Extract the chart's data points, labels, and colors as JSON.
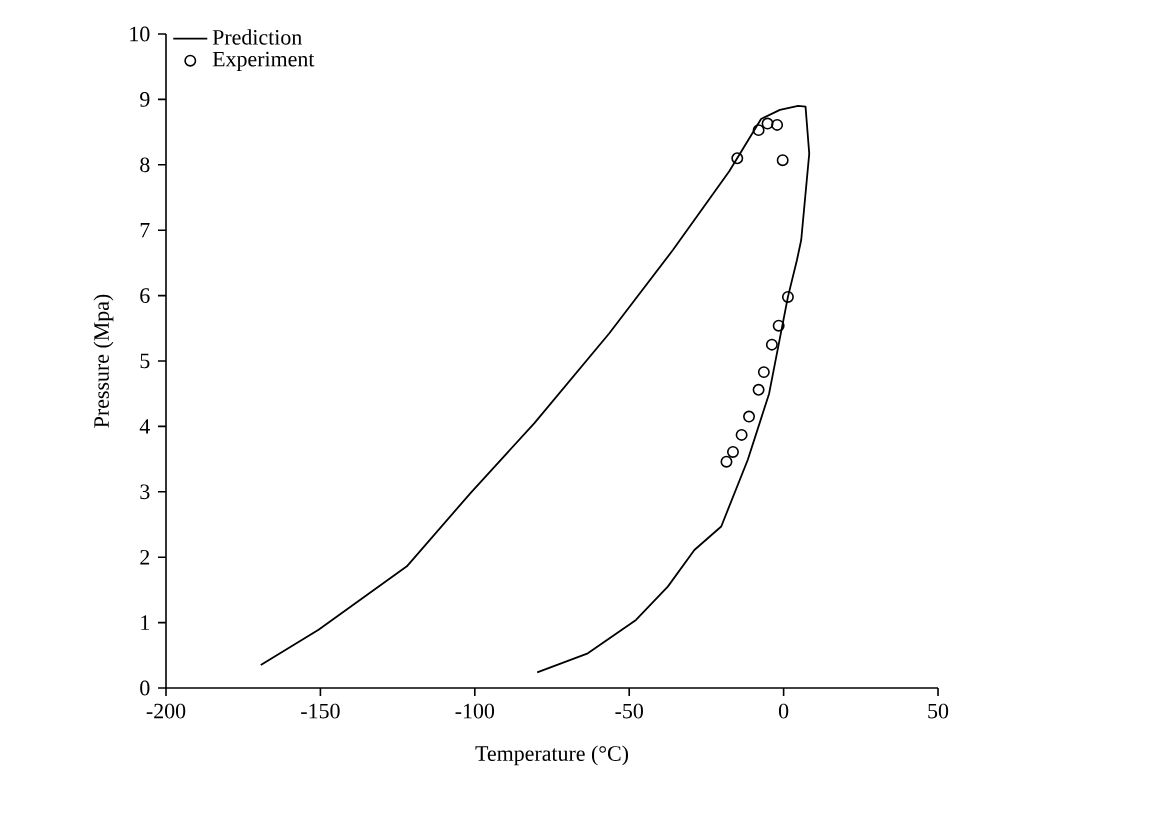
{
  "chart_data": {
    "type": "line",
    "xlabel": "Temperature (°C)",
    "ylabel": "Pressure (Mpa)",
    "xlim": [
      -200,
      50
    ],
    "xticks": [
      -200,
      -150,
      -100,
      -50,
      0,
      50
    ],
    "ylim": [
      0,
      10
    ],
    "yticks": [
      0,
      1,
      2,
      3,
      4,
      5,
      6,
      7,
      8,
      9,
      10
    ],
    "legend": "top left",
    "grid": false,
    "series": [
      {
        "name": "Prediction",
        "color": "#000000",
        "marker": "none",
        "x": [
          -169.3,
          -150.6,
          -122,
          -101.4,
          -80.7,
          -56.5,
          -35.8,
          -17.6,
          -7.3,
          -1.2,
          4.7,
          7.1,
          8.3,
          5.7,
          4.3,
          1.4,
          -4.7,
          -11.6,
          -20.2,
          -28.9,
          -37.5,
          -47.8,
          -63.4,
          -79.8
        ],
        "values": [
          0.35,
          0.89,
          1.86,
          2.98,
          4.05,
          5.42,
          6.7,
          7.9,
          8.7,
          8.84,
          8.9,
          8.89,
          8.17,
          6.85,
          6.54,
          5.98,
          4.5,
          3.49,
          2.47,
          2.11,
          1.55,
          1.04,
          0.53,
          0.24
        ]
      },
      {
        "name": "Experiment",
        "type": "scatter",
        "color": "#000000",
        "marker": "circle",
        "x": [
          -15,
          -8.1,
          -5.2,
          -2.1,
          -0.3,
          1.4,
          -1.6,
          -3.8,
          -6.4,
          -8.1,
          -11.2,
          -13.6,
          -16.4,
          -18.5
        ],
        "values": [
          8.1,
          8.53,
          8.63,
          8.61,
          8.07,
          5.98,
          5.54,
          5.25,
          4.83,
          4.56,
          4.15,
          3.87,
          3.61,
          3.46
        ]
      }
    ]
  }
}
